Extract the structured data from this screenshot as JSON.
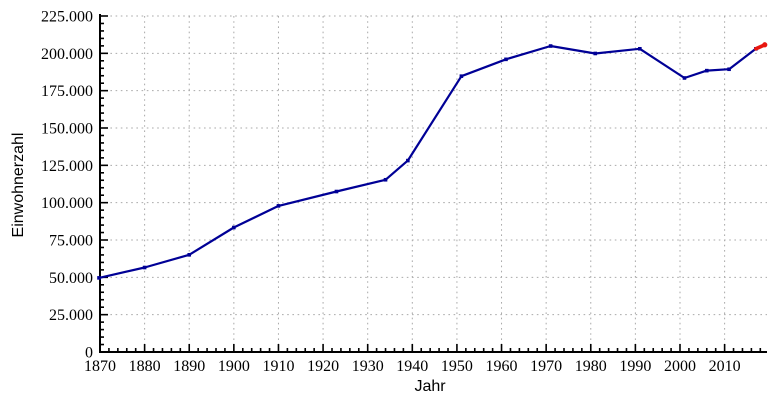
{
  "chart_data": {
    "type": "line",
    "title": "",
    "xlabel": "Jahr",
    "ylabel": "Einwohnerzahl",
    "xlim": [
      1870,
      2019.5
    ],
    "ylim": [
      0,
      225000
    ],
    "grid": true,
    "legend_position": "none",
    "x_tick_years": [
      1870,
      1880,
      1890,
      1900,
      1910,
      1920,
      1930,
      1940,
      1950,
      1960,
      1970,
      1980,
      1990,
      2000,
      2010
    ],
    "x_tick_labels": [
      "1870",
      "1880",
      "1890",
      "1900",
      "1910",
      "1920",
      "1930",
      "1940",
      "1950",
      "1960",
      "1970",
      "1980",
      "1990",
      "2000",
      "2010"
    ],
    "x_minor_step_years": 2,
    "y_tick_values": [
      0,
      25000,
      50000,
      75000,
      100000,
      125000,
      150000,
      175000,
      200000,
      225000
    ],
    "y_tick_labels": [
      "0",
      "25.000",
      "50.000",
      "75.000",
      "100.000",
      "125.000",
      "150.000",
      "175.000",
      "200.000",
      "225.000"
    ],
    "y_minor_step": 5000,
    "colors": {
      "background": "#ffffff",
      "axis": "#000000",
      "grid": "#a9a9a9",
      "series_blue": "#000096",
      "series_red": "#e8160f"
    },
    "series": [
      {
        "name": "series_blue",
        "color_key": "series_blue",
        "marker": "square",
        "points": [
          [
            1869,
            49635
          ],
          [
            1880,
            56569
          ],
          [
            1890,
            65090
          ],
          [
            1900,
            83356
          ],
          [
            1910,
            97852
          ],
          [
            1923,
            107463
          ],
          [
            1934,
            115338
          ],
          [
            1939,
            128177
          ],
          [
            1951,
            184704
          ],
          [
            1961,
            195978
          ],
          [
            1971,
            204889
          ],
          [
            1981,
            199910
          ],
          [
            1991,
            203044
          ],
          [
            2001,
            183504
          ],
          [
            2006,
            188407
          ],
          [
            2011,
            189343
          ],
          [
            2017,
            203012
          ]
        ]
      },
      {
        "name": "series_red",
        "color_key": "series_red",
        "marker": "dot-end",
        "points": [
          [
            2017,
            203012
          ],
          [
            2019,
            205726
          ]
        ]
      }
    ]
  }
}
